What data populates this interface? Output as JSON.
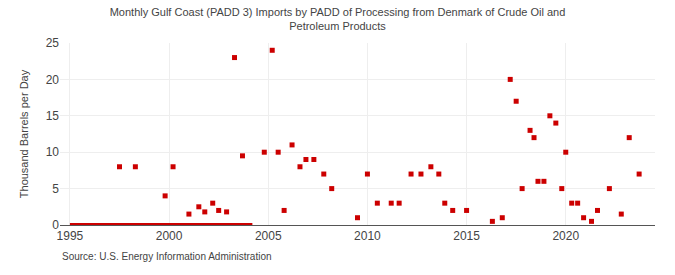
{
  "chart_data": {
    "type": "scatter",
    "title": "Monthly Gulf Coast (PADD 3) Imports by PADD of Processing from Denmark of Crude Oil and\nPetroleum Products",
    "ylabel": "Thousand Barrels per Day",
    "annotations": [
      "Source: U.S. Energy Information Administration"
    ],
    "xlim": [
      1994.5,
      2024.5
    ],
    "ylim": [
      0,
      25
    ],
    "xticks": [
      1995,
      2000,
      2005,
      2010,
      2015,
      2020
    ],
    "yticks": [
      0,
      5,
      10,
      15,
      20,
      25
    ],
    "grid": true,
    "series": [
      {
        "type": "line",
        "color": "#cc0000",
        "line_style": "solid",
        "x": [
          1995.0,
          2004.2
        ],
        "values": [
          0.0,
          0.0
        ]
      },
      {
        "type": "scatter",
        "color": "#cc0000",
        "marker": "square",
        "x": [
          1997.5,
          1998.3,
          1999.8,
          2000.2,
          2001.0,
          2001.5,
          2001.8,
          2002.2,
          2002.5,
          2002.9,
          2003.3,
          2003.7,
          2004.8,
          2005.2,
          2005.5,
          2005.8,
          2006.2,
          2006.6,
          2006.9,
          2007.3,
          2007.8,
          2008.2,
          2009.5,
          2010.0,
          2010.5,
          2011.2,
          2011.6,
          2012.2,
          2012.7,
          2013.2,
          2013.6,
          2013.9,
          2014.3,
          2015.0,
          2016.3,
          2016.8,
          2017.2,
          2017.5,
          2017.8,
          2018.2,
          2018.4,
          2018.6,
          2018.9,
          2019.2,
          2019.5,
          2019.8,
          2020.0,
          2020.3,
          2020.6,
          2020.9,
          2021.3,
          2021.6,
          2022.2,
          2022.8,
          2023.2,
          2023.7
        ],
        "values": [
          8.0,
          8.0,
          4.0,
          8.0,
          1.5,
          2.5,
          1.8,
          3.0,
          2.0,
          1.8,
          23.0,
          9.5,
          10.0,
          24.0,
          10.0,
          2.0,
          11.0,
          8.0,
          9.0,
          9.0,
          7.0,
          5.0,
          1.0,
          7.0,
          3.0,
          3.0,
          3.0,
          7.0,
          7.0,
          8.0,
          7.0,
          3.0,
          2.0,
          2.0,
          0.5,
          1.0,
          20.0,
          17.0,
          5.0,
          13.0,
          12.0,
          6.0,
          6.0,
          15.0,
          14.0,
          5.0,
          10.0,
          3.0,
          3.0,
          1.0,
          0.5,
          2.0,
          5.0,
          1.5,
          12.0,
          7.0
        ]
      }
    ]
  }
}
